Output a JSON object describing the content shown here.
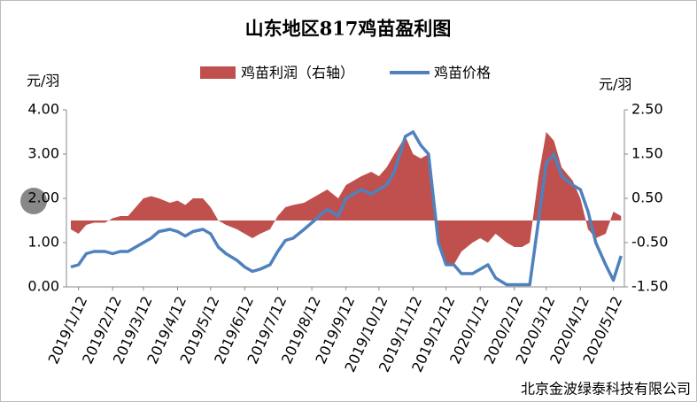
{
  "chart_data": {
    "type": "line-area",
    "title": "山东地区817鸡苗盈利图",
    "y_label": "元/羽",
    "y2_label": "元/羽",
    "source": "北京金波绿泰科技有限公司",
    "x": [
      "2019/1/5",
      "2019/1/12",
      "2019/1/19",
      "2019/1/26",
      "2019/2/5",
      "2019/2/12",
      "2019/2/19",
      "2019/2/26",
      "2019/3/5",
      "2019/3/12",
      "2019/3/19",
      "2019/3/26",
      "2019/4/5",
      "2019/4/12",
      "2019/4/19",
      "2019/4/26",
      "2019/5/5",
      "2019/5/12",
      "2019/5/19",
      "2019/5/26",
      "2019/6/5",
      "2019/6/12",
      "2019/6/19",
      "2019/6/26",
      "2019/7/5",
      "2019/7/12",
      "2019/7/19",
      "2019/7/26",
      "2019/8/5",
      "2019/8/12",
      "2019/8/19",
      "2019/8/26",
      "2019/9/5",
      "2019/9/12",
      "2019/9/19",
      "2019/9/26",
      "2019/10/5",
      "2019/10/12",
      "2019/10/19",
      "2019/10/26",
      "2019/11/5",
      "2019/11/12",
      "2019/11/19",
      "2019/11/26",
      "2019/12/5",
      "2019/12/12",
      "2019/12/19",
      "2019/12/26",
      "2020/1/5",
      "2020/1/12",
      "2020/1/19",
      "2020/1/26",
      "2020/2/5",
      "2020/2/12",
      "2020/2/19",
      "2020/2/26",
      "2020/3/5",
      "2020/3/12",
      "2020/3/19",
      "2020/3/26",
      "2020/4/5",
      "2020/4/12",
      "2020/4/19",
      "2020/4/26",
      "2020/5/5",
      "2020/5/12",
      "2020/5/19"
    ],
    "xlim": [
      "2019/1/1",
      "2020/5/22"
    ],
    "xticks": [
      "2019/1/12",
      "2019/2/12",
      "2019/3/12",
      "2019/4/12",
      "2019/5/12",
      "2019/6/12",
      "2019/7/12",
      "2019/8/12",
      "2019/9/12",
      "2019/10/12",
      "2019/11/12",
      "2019/12/12",
      "2020/1/12",
      "2020/2/12",
      "2020/3/12",
      "2020/4/12",
      "2020/5/12"
    ],
    "ylim": [
      0,
      4
    ],
    "yticks": [
      {
        "value": 0,
        "label": "0.00"
      },
      {
        "value": 1,
        "label": "1.00"
      },
      {
        "value": 2,
        "label": "2.00"
      },
      {
        "value": 3,
        "label": "3.00"
      },
      {
        "value": 4,
        "label": "4.00"
      }
    ],
    "y2lim": [
      -1.5,
      2.5
    ],
    "y2ticks": [
      {
        "value": -1.5,
        "label": "-1.50"
      },
      {
        "value": -0.5,
        "label": "-0.50"
      },
      {
        "value": 0.5,
        "label": "0.50"
      },
      {
        "value": 1.5,
        "label": "1.50"
      },
      {
        "value": 2.5,
        "label": "2.50"
      }
    ],
    "series": [
      {
        "name": "鸡苗利润（右轴）",
        "kind": "area",
        "axis": "y2",
        "color": "#c0504d",
        "values": [
          -0.2,
          -0.3,
          -0.1,
          -0.05,
          -0.05,
          0.05,
          0.1,
          0.1,
          0.3,
          0.5,
          0.55,
          0.5,
          0.4,
          0.45,
          0.35,
          0.5,
          0.5,
          0.3,
          0.0,
          -0.1,
          -0.2,
          -0.3,
          -0.4,
          -0.3,
          -0.2,
          0.1,
          0.3,
          0.35,
          0.4,
          0.5,
          0.6,
          0.7,
          0.5,
          0.8,
          0.9,
          1.0,
          1.1,
          1.0,
          1.2,
          1.5,
          1.9,
          1.5,
          1.4,
          1.5,
          -0.4,
          -1.0,
          -1.0,
          -0.7,
          -0.5,
          -0.4,
          -0.5,
          -0.3,
          -0.5,
          -0.6,
          -0.6,
          -0.5,
          1.0,
          2.0,
          1.8,
          1.2,
          0.9,
          0.5,
          -0.2,
          -0.4,
          -0.3,
          0.2,
          0.1
        ]
      },
      {
        "name": "鸡苗价格",
        "kind": "line",
        "color": "#4f81bd",
        "values": [
          0.45,
          0.5,
          0.75,
          0.8,
          0.8,
          0.75,
          0.8,
          0.8,
          0.9,
          1.0,
          1.1,
          1.25,
          1.3,
          1.25,
          1.15,
          1.25,
          1.3,
          1.2,
          0.9,
          0.75,
          0.6,
          0.45,
          0.35,
          0.4,
          0.5,
          0.8,
          1.05,
          1.1,
          1.3,
          1.45,
          1.6,
          1.75,
          1.6,
          2.0,
          2.1,
          2.2,
          2.1,
          2.2,
          2.3,
          2.6,
          3.4,
          3.5,
          3.2,
          3.0,
          1.0,
          0.5,
          0.5,
          0.3,
          0.3,
          0.4,
          0.5,
          0.2,
          0.05,
          0.05,
          0.05,
          0.05,
          1.5,
          2.8,
          3.0,
          2.5,
          2.3,
          2.2,
          1.7,
          1.0,
          0.5,
          0.15,
          0.7
        ]
      }
    ]
  }
}
